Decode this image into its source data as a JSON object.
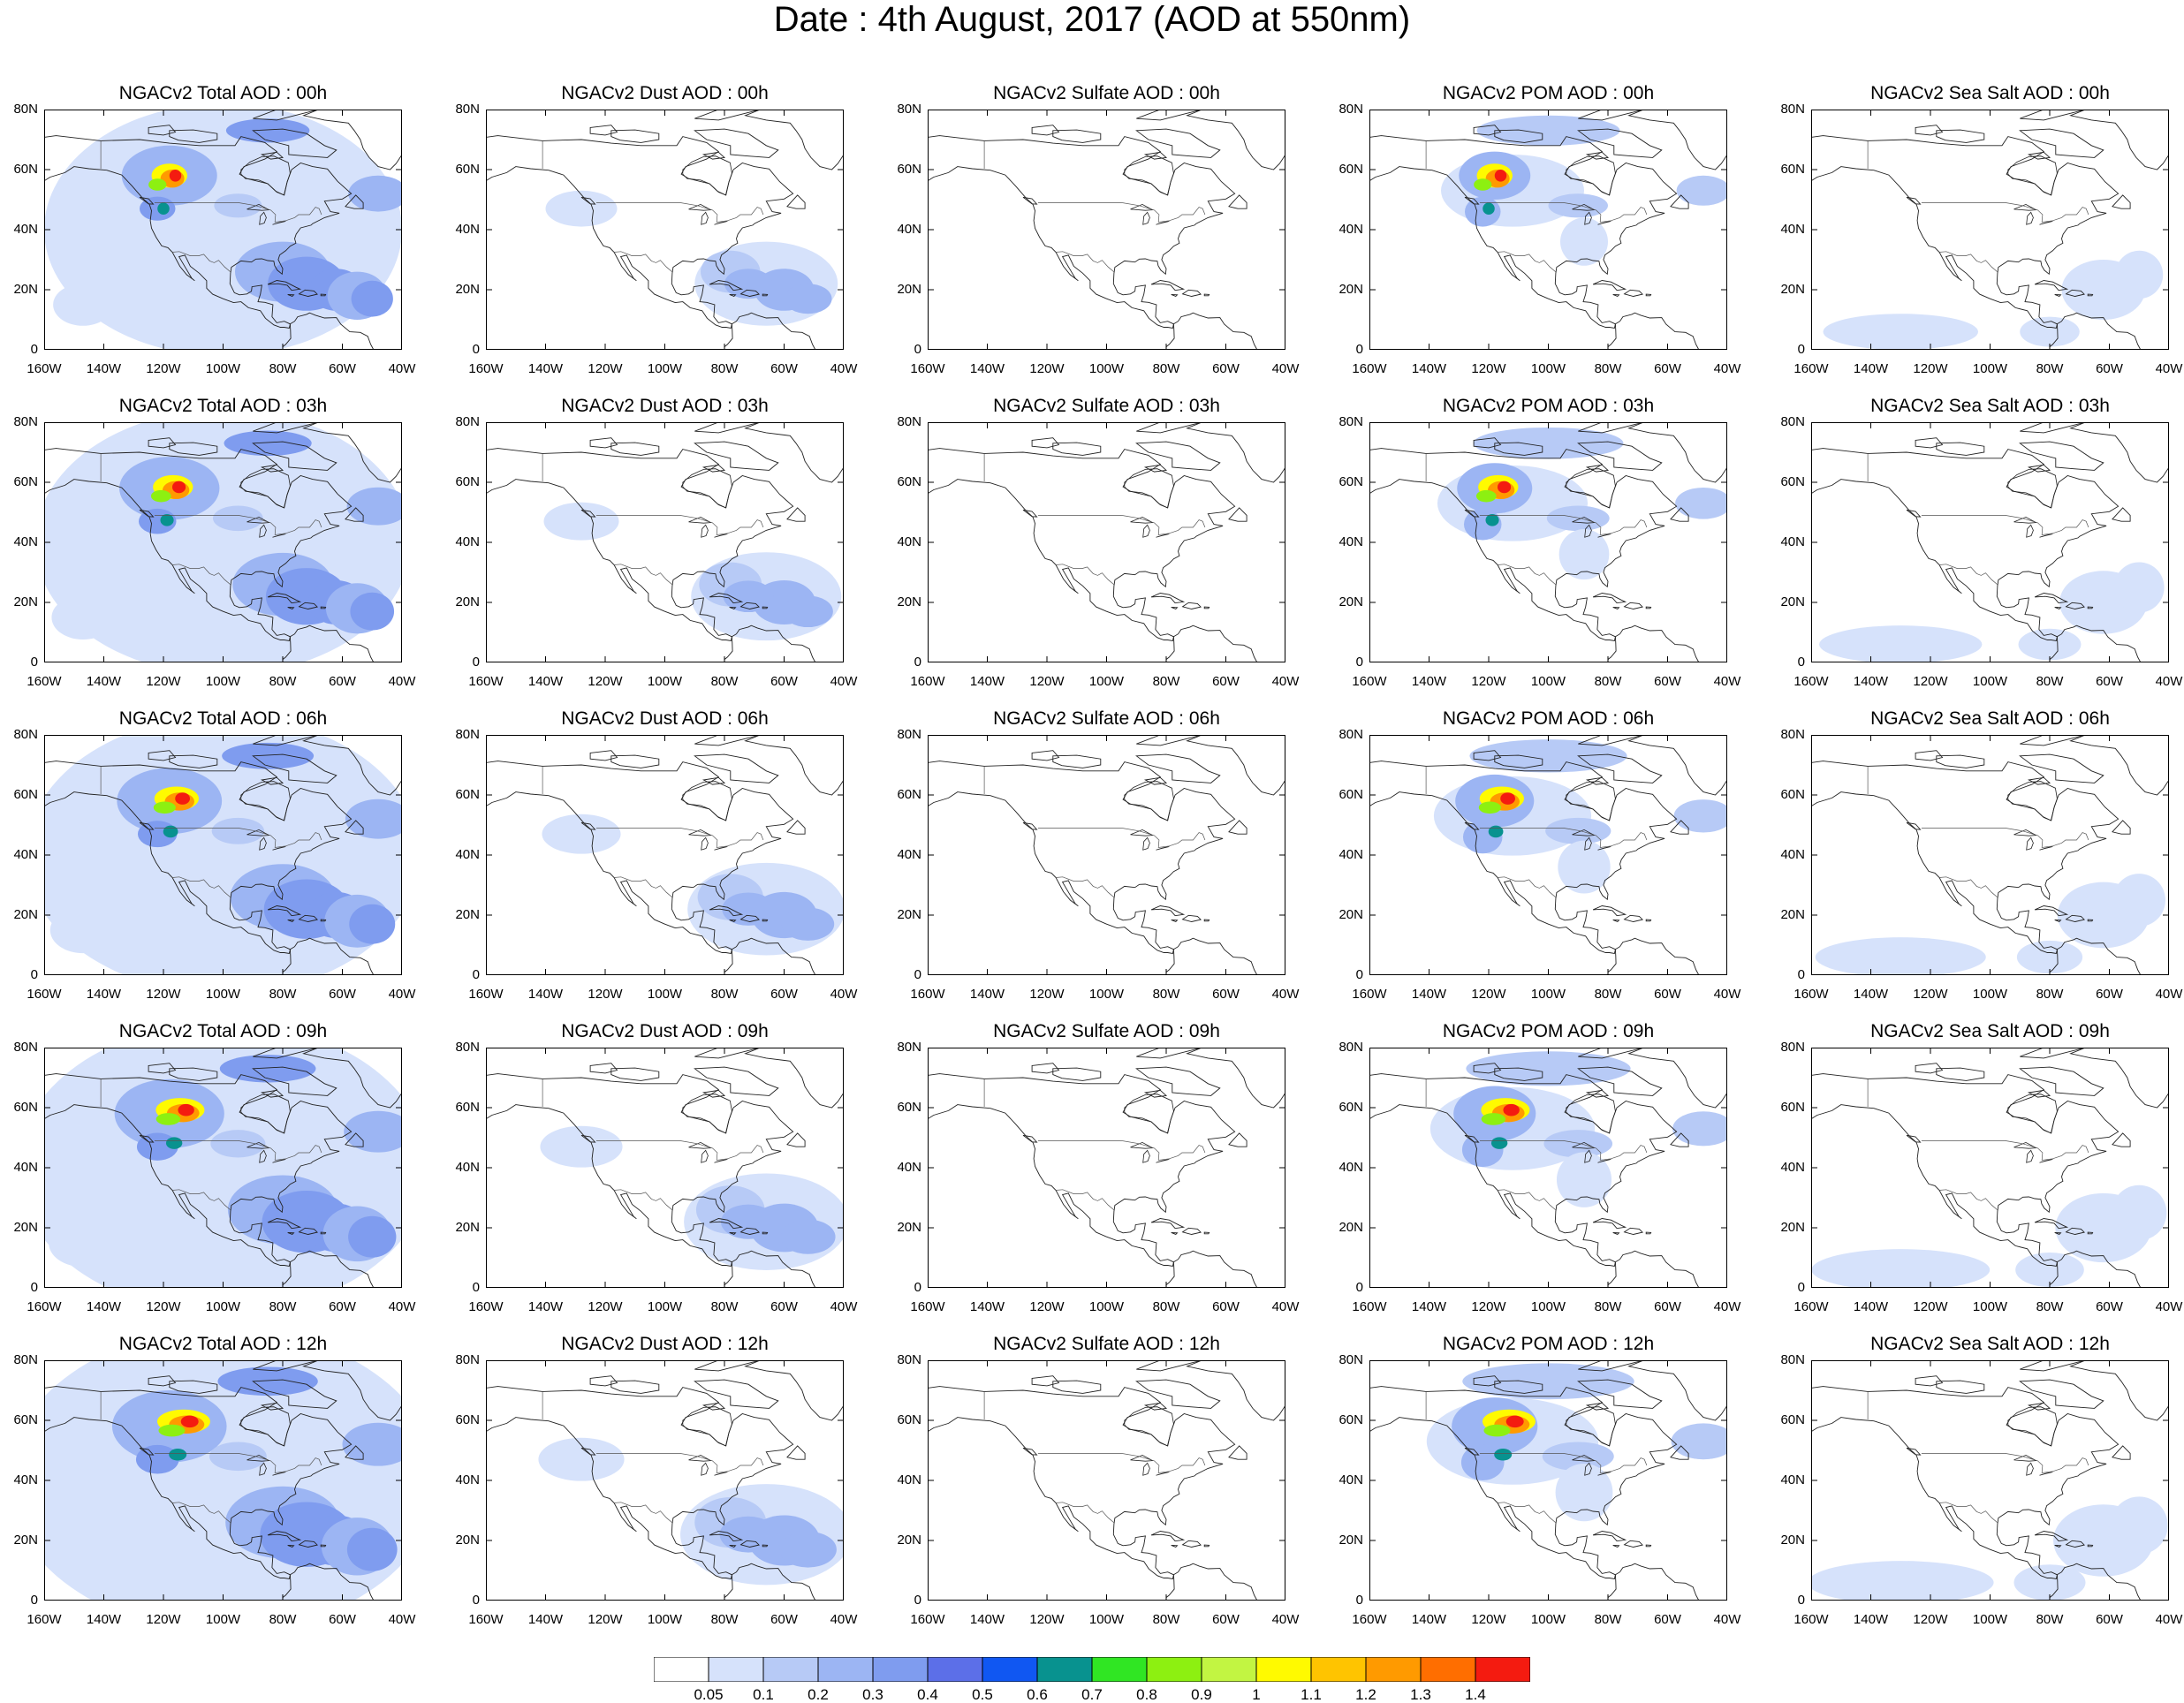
{
  "title": "Date : 4th August, 2017 (AOD at 550nm)",
  "panel_titles": [
    [
      "NGACv2 Total AOD : 00h",
      "NGACv2 Dust AOD : 00h",
      "NGACv2 Sulfate AOD : 00h",
      "NGACv2 POM AOD : 00h",
      "NGACv2 Sea Salt AOD : 00h"
    ],
    [
      "NGACv2 Total AOD : 03h",
      "NGACv2 Dust AOD : 03h",
      "NGACv2 Sulfate AOD : 03h",
      "NGACv2 POM AOD : 03h",
      "NGACv2 Sea Salt AOD : 03h"
    ],
    [
      "NGACv2 Total AOD : 06h",
      "NGACv2 Dust AOD : 06h",
      "NGACv2 Sulfate AOD : 06h",
      "NGACv2 POM AOD : 06h",
      "NGACv2 Sea Salt AOD : 06h"
    ],
    [
      "NGACv2 Total AOD : 09h",
      "NGACv2 Dust AOD : 09h",
      "NGACv2 Sulfate AOD : 09h",
      "NGACv2 POM AOD : 09h",
      "NGACv2 Sea Salt  AOD : 09h"
    ],
    [
      "NGACv2 Total AOD  : 12h",
      "NGACv2 Dust AOD : 12h",
      "NGACv2 Sulfate AOD : 12h",
      "NGACv2 POM  AOD : 12h",
      "NGACv2 Sea Salt  AOD : 12h"
    ]
  ],
  "lat_ticks": [
    "80N",
    "60N",
    "40N",
    "20N",
    "0"
  ],
  "lon_ticks": [
    "160W",
    "140W",
    "120W",
    "100W",
    "80W",
    "60W",
    "40W"
  ],
  "colorbar": {
    "labels": [
      "0.05",
      "0.1",
      "0.2",
      "0.3",
      "0.4",
      "0.5",
      "0.6",
      "0.7",
      "0.8",
      "0.9",
      "1",
      "1.1",
      "1.2",
      "1.3",
      "1.4"
    ],
    "colors": [
      "#ffffff",
      "#d6e2fb",
      "#b7caf6",
      "#9cb5f3",
      "#7f9cef",
      "#5c6fe8",
      "#1057f2",
      "#08928f",
      "#30e623",
      "#8df011",
      "#c2f542",
      "#fffa00",
      "#ffc400",
      "#ff9a00",
      "#ff6e00",
      "#f41b10"
    ]
  }
}
